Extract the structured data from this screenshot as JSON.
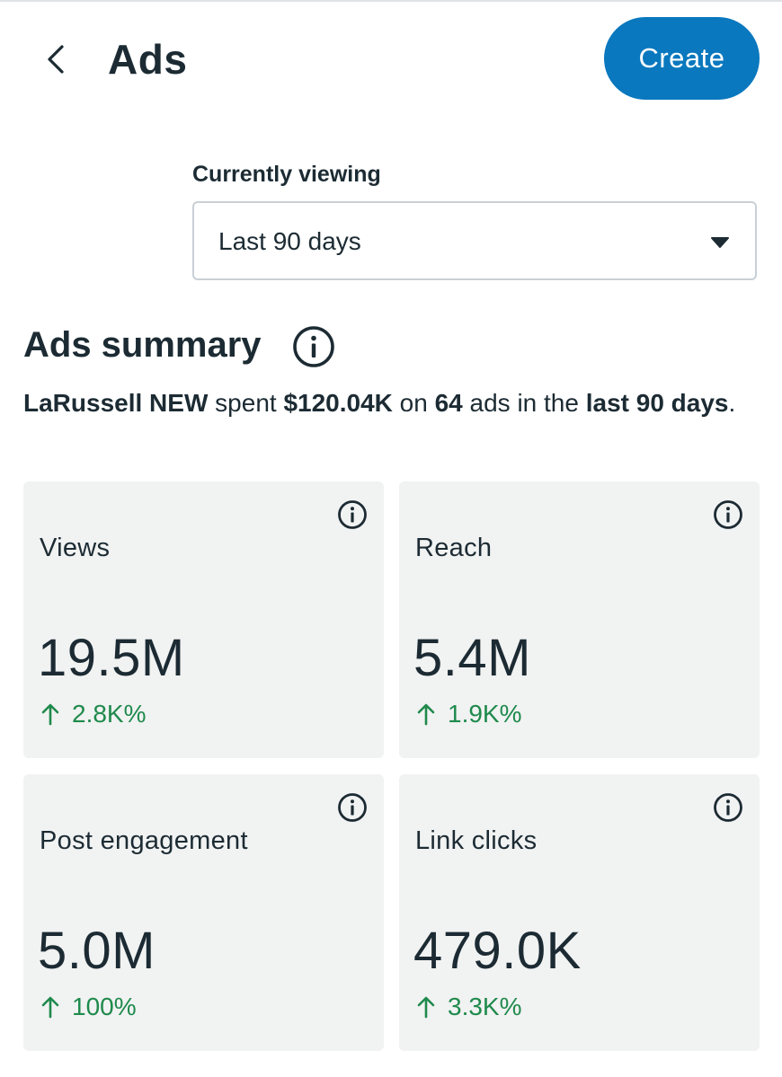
{
  "header": {
    "title": "Ads",
    "create_label": "Create"
  },
  "filter": {
    "label": "Currently viewing",
    "selected": "Last 90 days"
  },
  "summary": {
    "title": "Ads summary",
    "account_name": "LaRussell NEW",
    "text_spent": " spent ",
    "amount": "$120.04K",
    "text_on": " on ",
    "ad_count": "64",
    "text_ads_in_the": " ads in the ",
    "period": "last 90 days",
    "text_end": "."
  },
  "metrics": [
    {
      "label": "Views",
      "value": "19.5M",
      "change": "2.8K%"
    },
    {
      "label": "Reach",
      "value": "5.4M",
      "change": "1.9K%"
    },
    {
      "label": "Post engagement",
      "value": "5.0M",
      "change": "100%"
    },
    {
      "label": "Link clicks",
      "value": "479.0K",
      "change": "3.3K%"
    }
  ],
  "colors": {
    "accent": "#0a78be",
    "positive": "#1f8a4c",
    "text": "#1c2b33",
    "card_bg": "#f1f2f2"
  },
  "icons": {
    "back": "chevron-left-icon",
    "dropdown": "caret-down-icon",
    "info": "info-icon",
    "trend": "arrow-up-icon"
  }
}
